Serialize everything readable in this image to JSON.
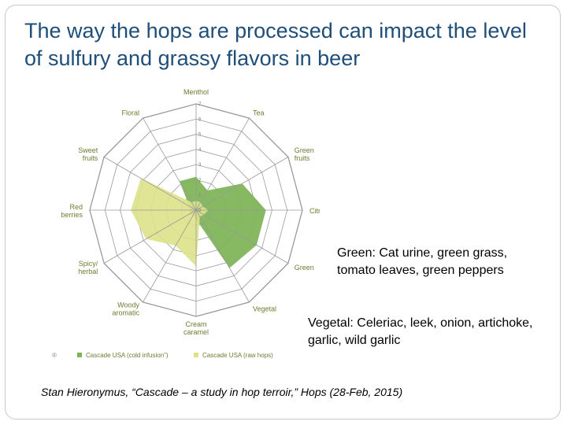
{
  "slide": {
    "title": "The way the hops are processed can impact the level of sulfury and grassy flavors in beer",
    "note_green": "Green: Cat urine, green grass, tomato leaves, green peppers",
    "note_vegetal": "Vegetal: Celeriac, leek, onion, artichoke, garlic, wild garlic",
    "citation": "Stan Hieronymus, “Cascade – a study in hop terroir,” Hops (28-Feb, 2015)"
  },
  "chart_data": {
    "type": "radar",
    "axes": [
      "Menthol",
      "Tea",
      "Green fruits",
      "Citrus",
      "Green",
      "Vegetal",
      "Cream caramel",
      "Woody aromatic",
      "Spicy/ herbal",
      "Red berries",
      "Sweet fruits",
      "Floral"
    ],
    "scale_ticks": [
      "0",
      "1",
      "2",
      "3",
      "4",
      "5",
      "6",
      "7"
    ],
    "rlim": [
      0,
      7
    ],
    "grid": true,
    "legend_placement": "bottom",
    "series": [
      {
        "name": "Cascade USA (cold infusion”)",
        "color": "#7fb55a",
        "values": [
          2.2,
          1.5,
          3.5,
          4.6,
          4.6,
          4.4,
          0.6,
          0.4,
          0.5,
          0.4,
          0.5,
          2.2
        ]
      },
      {
        "name": "Cascade USA (raw hops)",
        "color": "#dde28a",
        "values": [
          0.6,
          0.6,
          0.5,
          0.8,
          0.6,
          0.5,
          3.7,
          2.7,
          3.8,
          4.3,
          4.2,
          0.6
        ]
      }
    ],
    "grid_color": "#9a9a9a",
    "label_color": "#6d7c30",
    "legend_symbol": "®"
  }
}
